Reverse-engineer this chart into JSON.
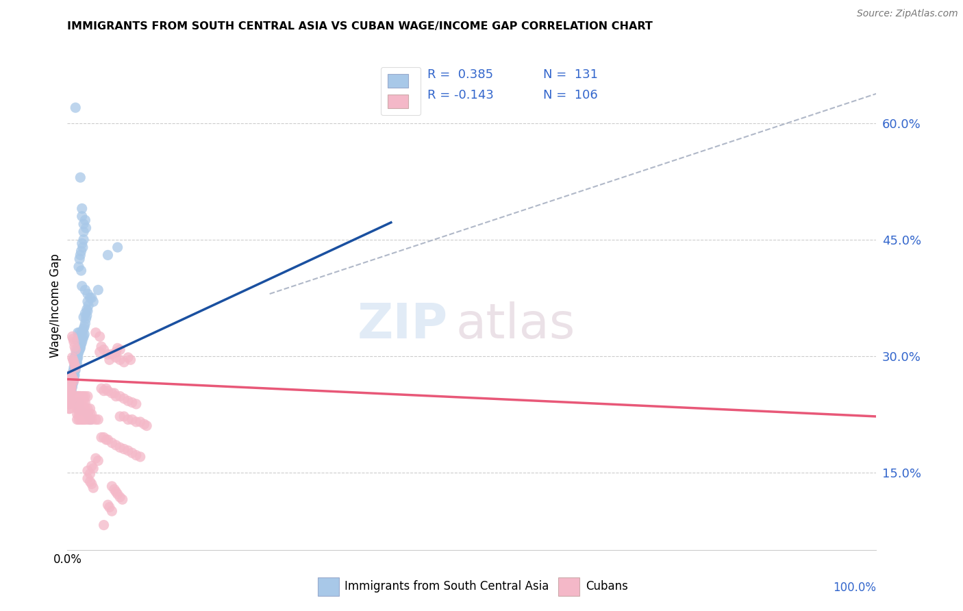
{
  "title": "IMMIGRANTS FROM SOUTH CENTRAL ASIA VS CUBAN WAGE/INCOME GAP CORRELATION CHART",
  "source": "Source: ZipAtlas.com",
  "ylabel": "Wage/Income Gap",
  "y_ticks": [
    0.15,
    0.3,
    0.45,
    0.6
  ],
  "y_tick_labels": [
    "15.0%",
    "30.0%",
    "45.0%",
    "60.0%"
  ],
  "legend_label1": "Immigrants from South Central Asia",
  "legend_label2": "Cubans",
  "color_blue": "#a8c8e8",
  "color_pink": "#f4b8c8",
  "color_blue_line": "#1a50a0",
  "color_pink_line": "#e85878",
  "color_dashed": "#b0b8c8",
  "watermark_zip": "ZIP",
  "watermark_atlas": "atlas",
  "blue_points": [
    [
      0.01,
      0.62
    ],
    [
      0.016,
      0.53
    ],
    [
      0.018,
      0.49
    ],
    [
      0.018,
      0.48
    ],
    [
      0.02,
      0.47
    ],
    [
      0.02,
      0.46
    ],
    [
      0.02,
      0.45
    ],
    [
      0.018,
      0.445
    ],
    [
      0.019,
      0.44
    ],
    [
      0.017,
      0.435
    ],
    [
      0.016,
      0.43
    ],
    [
      0.015,
      0.425
    ],
    [
      0.014,
      0.415
    ],
    [
      0.022,
      0.475
    ],
    [
      0.023,
      0.465
    ],
    [
      0.017,
      0.41
    ],
    [
      0.018,
      0.39
    ],
    [
      0.022,
      0.385
    ],
    [
      0.025,
      0.38
    ],
    [
      0.028,
      0.375
    ],
    [
      0.032,
      0.37
    ],
    [
      0.038,
      0.385
    ],
    [
      0.05,
      0.43
    ],
    [
      0.062,
      0.44
    ],
    [
      0.02,
      0.35
    ],
    [
      0.022,
      0.355
    ],
    [
      0.024,
      0.36
    ],
    [
      0.025,
      0.37
    ],
    [
      0.026,
      0.365
    ],
    [
      0.03,
      0.375
    ],
    [
      0.012,
      0.32
    ],
    [
      0.013,
      0.33
    ],
    [
      0.014,
      0.325
    ],
    [
      0.015,
      0.33
    ],
    [
      0.016,
      0.32
    ],
    [
      0.017,
      0.325
    ],
    [
      0.018,
      0.33
    ],
    [
      0.019,
      0.332
    ],
    [
      0.02,
      0.335
    ],
    [
      0.021,
      0.338
    ],
    [
      0.022,
      0.342
    ],
    [
      0.023,
      0.348
    ],
    [
      0.024,
      0.352
    ],
    [
      0.025,
      0.358
    ],
    [
      0.016,
      0.31
    ],
    [
      0.017,
      0.315
    ],
    [
      0.018,
      0.318
    ],
    [
      0.019,
      0.322
    ],
    [
      0.02,
      0.325
    ],
    [
      0.021,
      0.328
    ],
    [
      0.013,
      0.308
    ],
    [
      0.014,
      0.312
    ],
    [
      0.015,
      0.315
    ],
    [
      0.01,
      0.3
    ],
    [
      0.011,
      0.305
    ],
    [
      0.012,
      0.308
    ],
    [
      0.008,
      0.295
    ],
    [
      0.009,
      0.298
    ],
    [
      0.009,
      0.29
    ],
    [
      0.01,
      0.292
    ],
    [
      0.011,
      0.295
    ],
    [
      0.012,
      0.298
    ],
    [
      0.013,
      0.302
    ],
    [
      0.014,
      0.305
    ],
    [
      0.015,
      0.308
    ],
    [
      0.016,
      0.312
    ],
    [
      0.008,
      0.285
    ],
    [
      0.009,
      0.288
    ],
    [
      0.01,
      0.29
    ],
    [
      0.011,
      0.292
    ],
    [
      0.012,
      0.295
    ],
    [
      0.013,
      0.298
    ],
    [
      0.007,
      0.28
    ],
    [
      0.008,
      0.282
    ],
    [
      0.009,
      0.285
    ],
    [
      0.01,
      0.285
    ],
    [
      0.011,
      0.288
    ],
    [
      0.012,
      0.29
    ],
    [
      0.006,
      0.275
    ],
    [
      0.007,
      0.278
    ],
    [
      0.008,
      0.278
    ],
    [
      0.009,
      0.28
    ],
    [
      0.01,
      0.282
    ],
    [
      0.005,
      0.272
    ],
    [
      0.006,
      0.272
    ],
    [
      0.007,
      0.275
    ],
    [
      0.008,
      0.275
    ],
    [
      0.009,
      0.275
    ],
    [
      0.004,
      0.268
    ],
    [
      0.005,
      0.268
    ],
    [
      0.006,
      0.27
    ],
    [
      0.007,
      0.27
    ],
    [
      0.008,
      0.27
    ],
    [
      0.003,
      0.262
    ],
    [
      0.004,
      0.265
    ],
    [
      0.005,
      0.265
    ],
    [
      0.006,
      0.265
    ],
    [
      0.007,
      0.265
    ],
    [
      0.002,
      0.258
    ],
    [
      0.003,
      0.26
    ],
    [
      0.004,
      0.26
    ],
    [
      0.005,
      0.26
    ],
    [
      0.006,
      0.26
    ],
    [
      0.002,
      0.252
    ],
    [
      0.003,
      0.255
    ],
    [
      0.004,
      0.255
    ],
    [
      0.005,
      0.255
    ],
    [
      0.001,
      0.248
    ],
    [
      0.002,
      0.248
    ],
    [
      0.003,
      0.25
    ],
    [
      0.001,
      0.242
    ],
    [
      0.002,
      0.245
    ],
    [
      0.001,
      0.238
    ],
    [
      0.016,
      0.23
    ],
    [
      0.025,
      0.225
    ],
    [
      0.028,
      0.218
    ],
    [
      0.014,
      0.24
    ],
    [
      0.013,
      0.235
    ]
  ],
  "pink_points": [
    [
      0.002,
      0.27
    ],
    [
      0.003,
      0.272
    ],
    [
      0.004,
      0.275
    ],
    [
      0.003,
      0.268
    ],
    [
      0.005,
      0.268
    ],
    [
      0.004,
      0.262
    ],
    [
      0.005,
      0.262
    ],
    [
      0.003,
      0.258
    ],
    [
      0.004,
      0.258
    ],
    [
      0.005,
      0.258
    ],
    [
      0.003,
      0.252
    ],
    [
      0.004,
      0.252
    ],
    [
      0.005,
      0.252
    ],
    [
      0.002,
      0.248
    ],
    [
      0.003,
      0.248
    ],
    [
      0.004,
      0.248
    ],
    [
      0.002,
      0.242
    ],
    [
      0.003,
      0.242
    ],
    [
      0.004,
      0.242
    ],
    [
      0.002,
      0.238
    ],
    [
      0.003,
      0.238
    ],
    [
      0.002,
      0.232
    ],
    [
      0.003,
      0.232
    ],
    [
      0.001,
      0.26
    ],
    [
      0.001,
      0.252
    ],
    [
      0.001,
      0.244
    ],
    [
      0.006,
      0.325
    ],
    [
      0.007,
      0.322
    ],
    [
      0.008,
      0.318
    ],
    [
      0.009,
      0.312
    ],
    [
      0.01,
      0.308
    ],
    [
      0.006,
      0.298
    ],
    [
      0.007,
      0.295
    ],
    [
      0.008,
      0.292
    ],
    [
      0.009,
      0.288
    ],
    [
      0.01,
      0.285
    ],
    [
      0.005,
      0.275
    ],
    [
      0.006,
      0.272
    ],
    [
      0.007,
      0.27
    ],
    [
      0.008,
      0.268
    ],
    [
      0.012,
      0.248
    ],
    [
      0.013,
      0.248
    ],
    [
      0.014,
      0.248
    ],
    [
      0.015,
      0.248
    ],
    [
      0.016,
      0.248
    ],
    [
      0.018,
      0.248
    ],
    [
      0.02,
      0.248
    ],
    [
      0.022,
      0.248
    ],
    [
      0.025,
      0.248
    ],
    [
      0.012,
      0.24
    ],
    [
      0.014,
      0.24
    ],
    [
      0.016,
      0.24
    ],
    [
      0.018,
      0.24
    ],
    [
      0.02,
      0.24
    ],
    [
      0.022,
      0.24
    ],
    [
      0.012,
      0.232
    ],
    [
      0.014,
      0.232
    ],
    [
      0.016,
      0.232
    ],
    [
      0.018,
      0.232
    ],
    [
      0.02,
      0.232
    ],
    [
      0.022,
      0.232
    ],
    [
      0.025,
      0.232
    ],
    [
      0.028,
      0.232
    ],
    [
      0.012,
      0.225
    ],
    [
      0.014,
      0.225
    ],
    [
      0.016,
      0.225
    ],
    [
      0.018,
      0.225
    ],
    [
      0.02,
      0.225
    ],
    [
      0.022,
      0.225
    ],
    [
      0.025,
      0.225
    ],
    [
      0.028,
      0.225
    ],
    [
      0.03,
      0.225
    ],
    [
      0.012,
      0.218
    ],
    [
      0.014,
      0.218
    ],
    [
      0.016,
      0.218
    ],
    [
      0.018,
      0.218
    ],
    [
      0.02,
      0.218
    ],
    [
      0.022,
      0.218
    ],
    [
      0.025,
      0.218
    ],
    [
      0.028,
      0.218
    ],
    [
      0.03,
      0.218
    ],
    [
      0.035,
      0.218
    ],
    [
      0.038,
      0.218
    ],
    [
      0.035,
      0.33
    ],
    [
      0.04,
      0.325
    ],
    [
      0.042,
      0.312
    ],
    [
      0.04,
      0.305
    ],
    [
      0.045,
      0.308
    ],
    [
      0.05,
      0.302
    ],
    [
      0.055,
      0.302
    ],
    [
      0.052,
      0.295
    ],
    [
      0.06,
      0.298
    ],
    [
      0.06,
      0.305
    ],
    [
      0.062,
      0.31
    ],
    [
      0.065,
      0.308
    ],
    [
      0.065,
      0.295
    ],
    [
      0.07,
      0.292
    ],
    [
      0.075,
      0.298
    ],
    [
      0.078,
      0.295
    ],
    [
      0.042,
      0.258
    ],
    [
      0.045,
      0.255
    ],
    [
      0.048,
      0.258
    ],
    [
      0.05,
      0.255
    ],
    [
      0.055,
      0.252
    ],
    [
      0.058,
      0.252
    ],
    [
      0.06,
      0.248
    ],
    [
      0.065,
      0.248
    ],
    [
      0.07,
      0.245
    ],
    [
      0.075,
      0.242
    ],
    [
      0.08,
      0.24
    ],
    [
      0.085,
      0.238
    ],
    [
      0.065,
      0.222
    ],
    [
      0.07,
      0.222
    ],
    [
      0.075,
      0.218
    ],
    [
      0.08,
      0.218
    ],
    [
      0.085,
      0.215
    ],
    [
      0.09,
      0.215
    ],
    [
      0.095,
      0.212
    ],
    [
      0.098,
      0.21
    ],
    [
      0.042,
      0.195
    ],
    [
      0.045,
      0.195
    ],
    [
      0.048,
      0.192
    ],
    [
      0.05,
      0.192
    ],
    [
      0.055,
      0.188
    ],
    [
      0.06,
      0.185
    ],
    [
      0.065,
      0.182
    ],
    [
      0.07,
      0.18
    ],
    [
      0.075,
      0.178
    ],
    [
      0.08,
      0.175
    ],
    [
      0.085,
      0.172
    ],
    [
      0.09,
      0.17
    ],
    [
      0.035,
      0.168
    ],
    [
      0.038,
      0.165
    ],
    [
      0.03,
      0.158
    ],
    [
      0.032,
      0.155
    ],
    [
      0.025,
      0.152
    ],
    [
      0.028,
      0.148
    ],
    [
      0.025,
      0.142
    ],
    [
      0.028,
      0.138
    ],
    [
      0.03,
      0.135
    ],
    [
      0.032,
      0.13
    ],
    [
      0.055,
      0.132
    ],
    [
      0.058,
      0.128
    ],
    [
      0.06,
      0.125
    ],
    [
      0.062,
      0.122
    ],
    [
      0.065,
      0.118
    ],
    [
      0.068,
      0.115
    ],
    [
      0.05,
      0.108
    ],
    [
      0.052,
      0.105
    ],
    [
      0.055,
      0.1
    ],
    [
      0.045,
      0.082
    ]
  ],
  "xlim": [
    0.0,
    1.0
  ],
  "ylim": [
    0.05,
    0.68
  ],
  "blue_line_x": [
    0.0,
    0.4
  ],
  "blue_line_y": [
    0.278,
    0.472
  ],
  "pink_line_x": [
    0.0,
    1.0
  ],
  "pink_line_y": [
    0.27,
    0.222
  ],
  "dashed_line_x": [
    0.25,
    1.0
  ],
  "dashed_line_y": [
    0.38,
    0.638
  ],
  "x_tick_positions": [
    0.0,
    1.0
  ],
  "x_tick_labels": [
    "0.0%",
    "100.0%"
  ]
}
